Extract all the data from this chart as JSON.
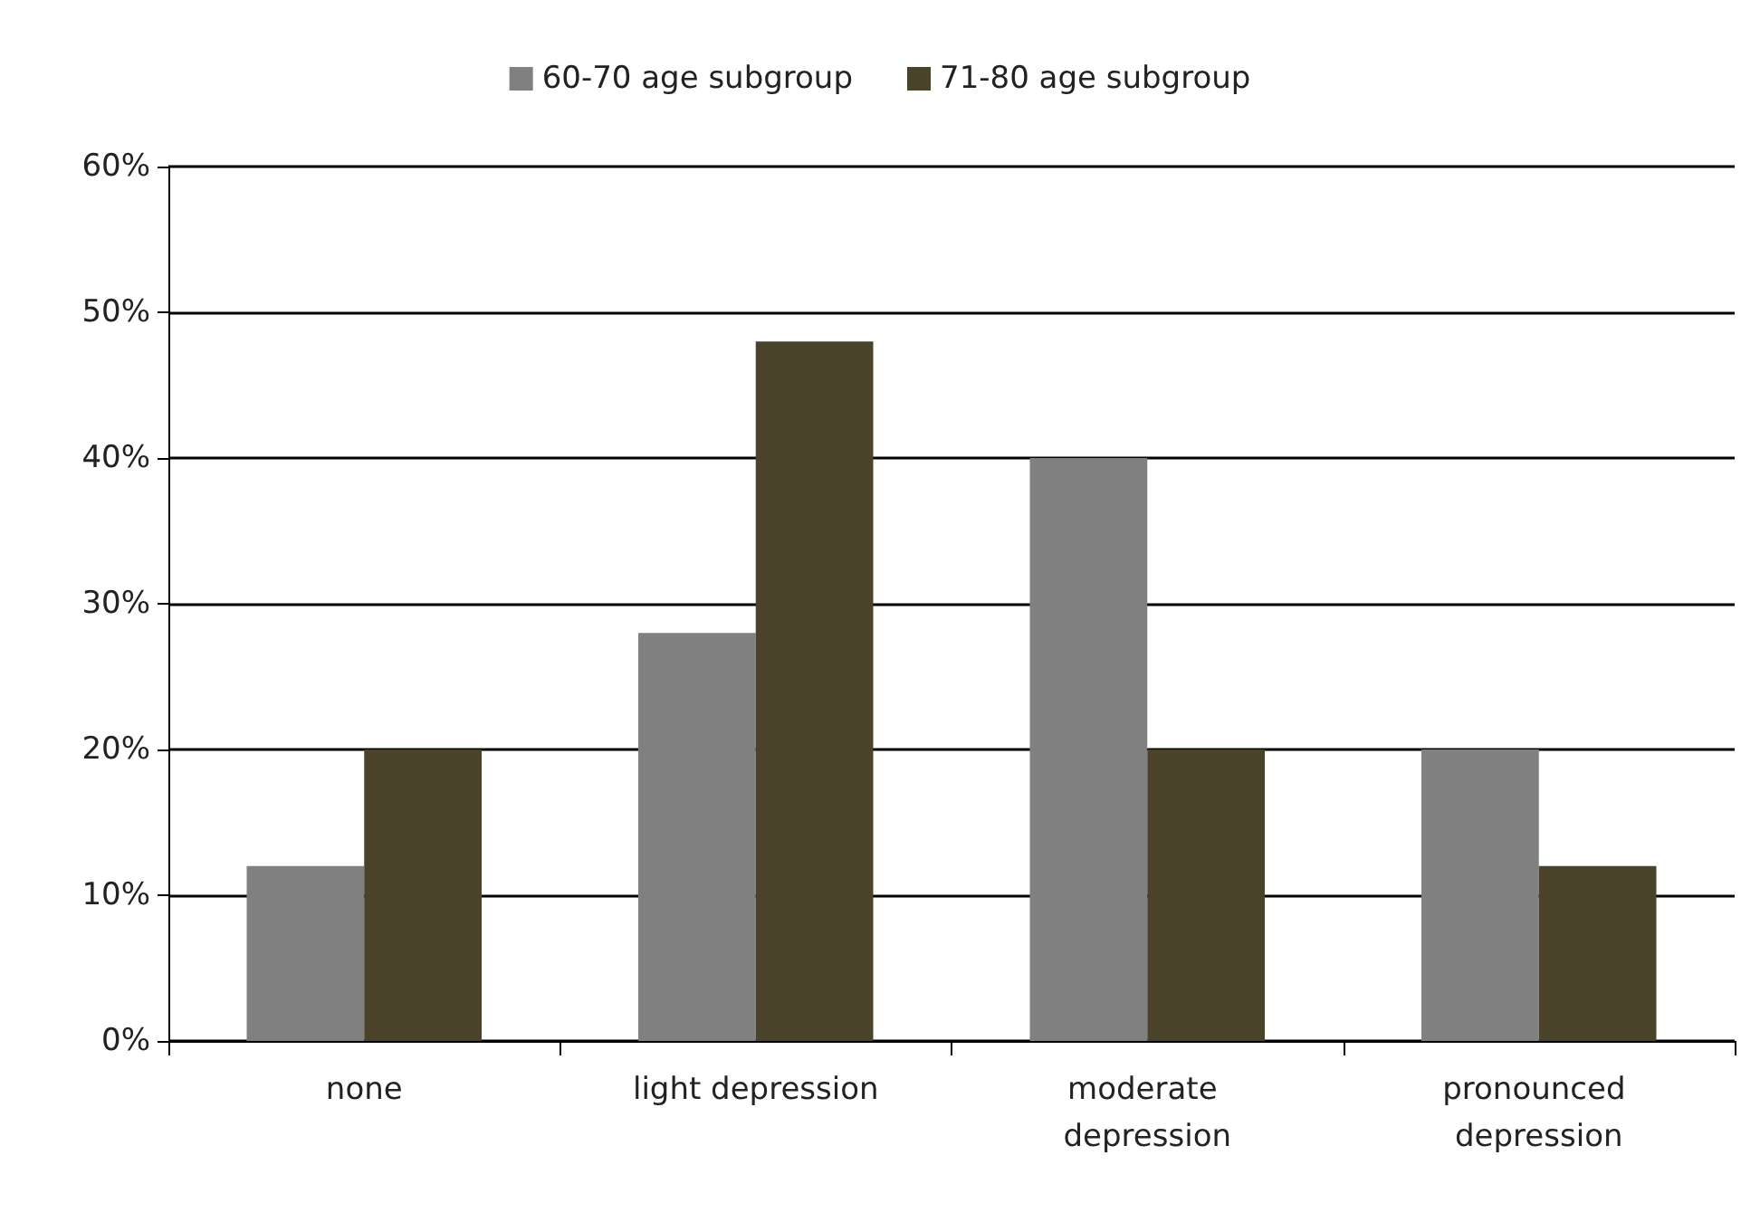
{
  "chart_data": {
    "type": "bar",
    "categories": [
      "none",
      "light depression",
      "moderate depression",
      "pronounced depression"
    ],
    "series": [
      {
        "name": "60-70 age subgroup",
        "color": "#808080",
        "values": [
          12,
          28,
          40,
          20
        ]
      },
      {
        "name": "71-80 age subgroup",
        "color": "#4a4229",
        "values": [
          20,
          48,
          20,
          12
        ]
      }
    ],
    "ylim": [
      0,
      60
    ],
    "yticks": [
      {
        "value": 0,
        "label": "0%"
      },
      {
        "value": 10,
        "label": "10%"
      },
      {
        "value": 20,
        "label": "20%"
      },
      {
        "value": 30,
        "label": "30%"
      },
      {
        "value": 40,
        "label": "40%"
      },
      {
        "value": 50,
        "label": "50%"
      },
      {
        "value": 60,
        "label": "60%"
      }
    ],
    "grid": "y",
    "legend": "top"
  }
}
